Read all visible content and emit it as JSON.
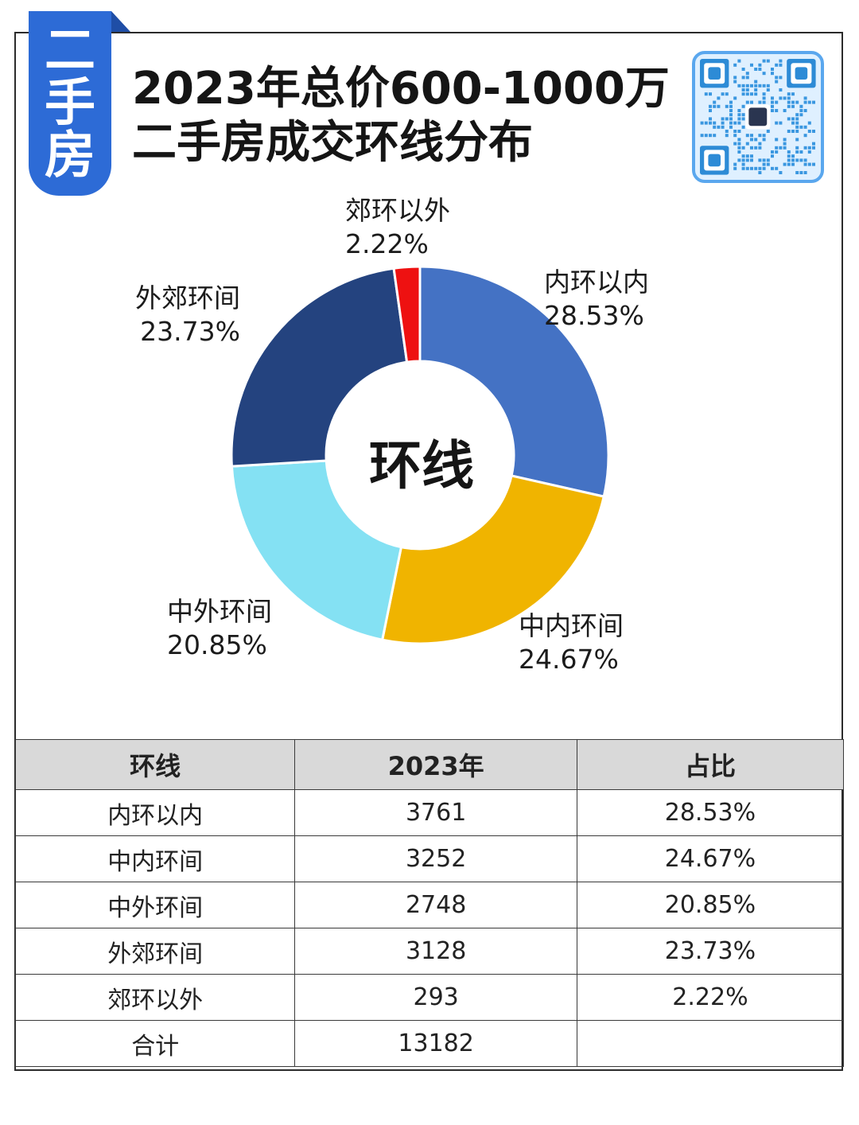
{
  "tag": {
    "chars": [
      "二",
      "手",
      "房"
    ],
    "color": "#2d6bd6"
  },
  "title": {
    "line1": "2023年总价600-1000万",
    "line2": "二手房成交环线分布"
  },
  "qr": {
    "icon": "qr-code-icon"
  },
  "chart_data": {
    "type": "pie",
    "center_label": "环线",
    "slices": [
      {
        "label": "内环以内",
        "percent_text": "28.53%",
        "value": 28.53,
        "color": "#4472c4"
      },
      {
        "label": "中内环间",
        "percent_text": "24.67%",
        "value": 24.67,
        "color": "#f0b400"
      },
      {
        "label": "中外环间",
        "percent_text": "20.85%",
        "value": 20.85,
        "color": "#84e1f3"
      },
      {
        "label": "外郊环间",
        "percent_text": "23.73%",
        "value": 23.73,
        "color": "#24437f"
      },
      {
        "label": "郊环以外",
        "percent_text": "2.22%",
        "value": 2.22,
        "color": "#ee1111"
      }
    ]
  },
  "table": {
    "headers": [
      "环线",
      "2023年",
      "占比"
    ],
    "rows": [
      [
        "内环以内",
        "3761",
        "28.53%"
      ],
      [
        "中内环间",
        "3252",
        "24.67%"
      ],
      [
        "中外环间",
        "2748",
        "20.85%"
      ],
      [
        "外郊环间",
        "3128",
        "23.73%"
      ],
      [
        "郊环以外",
        "293",
        "2.22%"
      ],
      [
        "合计",
        "13182",
        ""
      ]
    ]
  }
}
